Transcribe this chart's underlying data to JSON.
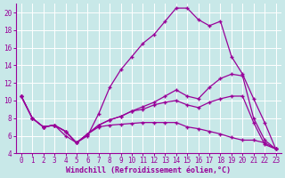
{
  "xlabel": "Windchill (Refroidissement éolien,°C)",
  "x": [
    0,
    1,
    2,
    3,
    4,
    5,
    6,
    7,
    8,
    9,
    10,
    11,
    12,
    13,
    14,
    15,
    16,
    17,
    18,
    19,
    20,
    21,
    22,
    23
  ],
  "line1": [
    10.5,
    8.0,
    7.0,
    7.2,
    6.0,
    5.2,
    6.0,
    8.5,
    11.5,
    13.5,
    15.0,
    16.5,
    17.5,
    19.0,
    20.5,
    20.5,
    19.2,
    18.5,
    19.0,
    15.0,
    13.0,
    10.2,
    7.5,
    4.5
  ],
  "line2": [
    10.5,
    8.0,
    7.0,
    7.2,
    6.5,
    5.2,
    6.2,
    7.2,
    7.8,
    8.2,
    8.8,
    9.3,
    9.8,
    10.5,
    11.2,
    10.5,
    10.2,
    11.5,
    12.5,
    13.0,
    12.8,
    8.0,
    5.5,
    4.5
  ],
  "line3": [
    10.5,
    8.0,
    7.0,
    7.2,
    6.5,
    5.2,
    6.2,
    7.2,
    7.8,
    8.2,
    8.8,
    9.0,
    9.5,
    9.8,
    10.0,
    9.5,
    9.2,
    9.8,
    10.2,
    10.5,
    10.5,
    7.5,
    5.0,
    4.5
  ],
  "line4": [
    10.5,
    8.0,
    7.0,
    7.2,
    6.5,
    5.2,
    6.2,
    7.0,
    7.2,
    7.3,
    7.4,
    7.5,
    7.5,
    7.5,
    7.5,
    7.0,
    6.8,
    6.5,
    6.2,
    5.8,
    5.5,
    5.5,
    5.2,
    4.5
  ],
  "line_color": "#990099",
  "bg_color": "#c8e8e8",
  "grid_color": "#aaaaaa",
  "xlim_min": -0.5,
  "xlim_max": 23.5,
  "ylim_min": 4,
  "ylim_max": 21,
  "yticks": [
    4,
    6,
    8,
    10,
    12,
    14,
    16,
    18,
    20
  ],
  "xticks": [
    0,
    1,
    2,
    3,
    4,
    5,
    6,
    7,
    8,
    9,
    10,
    11,
    12,
    13,
    14,
    15,
    16,
    17,
    18,
    19,
    20,
    21,
    22,
    23
  ],
  "tick_fontsize": 5.5,
  "xlabel_fontsize": 6,
  "marker": "+",
  "markersize": 3.5,
  "linewidth": 0.9
}
